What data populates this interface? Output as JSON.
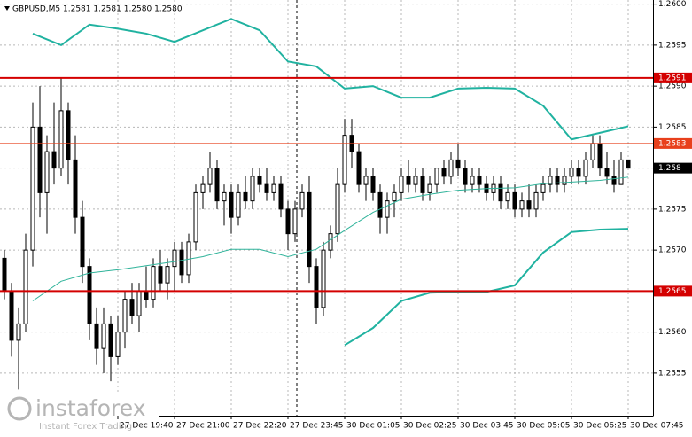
{
  "chart_data": {
    "type": "candlestick",
    "title": "GBPUSD,M5  1.2581 1.2581 1.2580 1.2580",
    "ylim": [
      1.25498,
      1.26005
    ],
    "yticks": [
      {
        "value": 1.26,
        "label": "1.2600"
      },
      1.2595,
      {
        "value": 1.259,
        "label": "1.2590"
      },
      1.2585,
      {
        "value": 1.258,
        "label": "1.2580"
      },
      1.2575,
      {
        "value": 1.257,
        "label": "1.2570"
      },
      1.2565,
      {
        "value": 1.256,
        "label": "1.2560"
      },
      1.2555
    ],
    "xlim": [
      -0.5,
      91
    ],
    "xticks": [
      {
        "value": 16,
        "label": "27 Dec 19:40"
      },
      {
        "value": 24,
        "label": "27 Dec 21:00"
      },
      {
        "value": 32,
        "label": "27 Dec 22:20"
      },
      {
        "value": 40,
        "label": "27 Dec 23:45"
      },
      {
        "value": 48,
        "label": "30 Dec 01:05"
      },
      {
        "value": 56,
        "label": "30 Dec 02:25"
      },
      {
        "value": 64,
        "label": "30 Dec 03:45"
      },
      {
        "value": 72,
        "label": "30 Dec 05:05"
      },
      {
        "value": 80,
        "label": "30 Dec 06:25"
      },
      {
        "value": 88,
        "label": "30 Dec 07:45"
      }
    ],
    "grid": true,
    "candles": [
      [
        1.2569,
        1.257,
        1.2564,
        1.2565
      ],
      [
        1.2565,
        1.2566,
        1.2557,
        1.2559
      ],
      [
        1.2559,
        1.2563,
        1.2553,
        1.2561
      ],
      [
        1.2561,
        1.2572,
        1.256,
        1.257
      ],
      [
        1.257,
        1.2588,
        1.2568,
        1.2585
      ],
      [
        1.2585,
        1.259,
        1.2574,
        1.2577
      ],
      [
        1.2577,
        1.2584,
        1.2572,
        1.2582
      ],
      [
        1.2582,
        1.2588,
        1.2578,
        1.258
      ],
      [
        1.258,
        1.2591,
        1.2579,
        1.2587
      ],
      [
        1.2587,
        1.2588,
        1.2578,
        1.2581
      ],
      [
        1.2581,
        1.2584,
        1.2572,
        1.2574
      ],
      [
        1.2574,
        1.2576,
        1.2566,
        1.2568
      ],
      [
        1.2568,
        1.2569,
        1.2559,
        1.2561
      ],
      [
        1.2561,
        1.2563,
        1.2556,
        1.2558
      ],
      [
        1.2558,
        1.2563,
        1.2555,
        1.2561
      ],
      [
        1.2561,
        1.2562,
        1.2554,
        1.2557
      ],
      [
        1.2557,
        1.2562,
        1.2556,
        1.256
      ],
      [
        1.256,
        1.2565,
        1.2558,
        1.2564
      ],
      [
        1.2564,
        1.2566,
        1.2561,
        1.2562
      ],
      [
        1.2562,
        1.2566,
        1.256,
        1.2565
      ],
      [
        1.2565,
        1.2568,
        1.2563,
        1.2564
      ],
      [
        1.2564,
        1.2569,
        1.2563,
        1.2568
      ],
      [
        1.2568,
        1.257,
        1.2565,
        1.2566
      ],
      [
        1.2566,
        1.2569,
        1.2564,
        1.2568
      ],
      [
        1.2568,
        1.2571,
        1.2565,
        1.257
      ],
      [
        1.257,
        1.2571,
        1.2566,
        1.2567
      ],
      [
        1.2567,
        1.2572,
        1.2566,
        1.2571
      ],
      [
        1.2571,
        1.2578,
        1.257,
        1.2577
      ],
      [
        1.2577,
        1.2579,
        1.2575,
        1.2578
      ],
      [
        1.2578,
        1.2582,
        1.2577,
        1.258
      ],
      [
        1.258,
        1.2581,
        1.2575,
        1.2576
      ],
      [
        1.2576,
        1.2578,
        1.2573,
        1.2577
      ],
      [
        1.2577,
        1.2578,
        1.2572,
        1.2574
      ],
      [
        1.2574,
        1.2578,
        1.2573,
        1.2577
      ],
      [
        1.2577,
        1.2579,
        1.2575,
        1.2576
      ],
      [
        1.2576,
        1.258,
        1.2575,
        1.2579
      ],
      [
        1.2579,
        1.258,
        1.2577,
        1.2578
      ],
      [
        1.2578,
        1.258,
        1.2576,
        1.2577
      ],
      [
        1.2577,
        1.2579,
        1.2576,
        1.2578
      ],
      [
        1.2578,
        1.2579,
        1.2574,
        1.2575
      ],
      [
        1.2575,
        1.2576,
        1.257,
        1.2572
      ],
      [
        1.2572,
        1.2576,
        1.2571,
        1.2575
      ],
      [
        1.2575,
        1.2578,
        1.2574,
        1.2577
      ],
      [
        1.2577,
        1.2579,
        1.2566,
        1.2568
      ],
      [
        1.2568,
        1.2569,
        1.2561,
        1.2563
      ],
      [
        1.2563,
        1.2571,
        1.2562,
        1.257
      ],
      [
        1.257,
        1.2573,
        1.2569,
        1.2572
      ],
      [
        1.2572,
        1.258,
        1.2571,
        1.2578
      ],
      [
        1.2578,
        1.2586,
        1.2577,
        1.2584
      ],
      [
        1.2584,
        1.2586,
        1.258,
        1.2582
      ],
      [
        1.2582,
        1.2583,
        1.2577,
        1.2578
      ],
      [
        1.2578,
        1.258,
        1.2576,
        1.2579
      ],
      [
        1.2579,
        1.258,
        1.2576,
        1.2577
      ],
      [
        1.2577,
        1.2578,
        1.2572,
        1.2574
      ],
      [
        1.2574,
        1.2577,
        1.2572,
        1.2576
      ],
      [
        1.2576,
        1.2578,
        1.2574,
        1.2577
      ],
      [
        1.2577,
        1.258,
        1.2576,
        1.2579
      ],
      [
        1.2579,
        1.2581,
        1.2577,
        1.2578
      ],
      [
        1.2578,
        1.258,
        1.2577,
        1.2579
      ],
      [
        1.2579,
        1.258,
        1.2576,
        1.2577
      ],
      [
        1.2577,
        1.2579,
        1.2576,
        1.2578
      ],
      [
        1.2578,
        1.258,
        1.2577,
        1.258
      ],
      [
        1.258,
        1.2581,
        1.2578,
        1.2579
      ],
      [
        1.2579,
        1.2582,
        1.2578,
        1.2581
      ],
      [
        1.2581,
        1.2583,
        1.2579,
        1.258
      ],
      [
        1.258,
        1.2581,
        1.2577,
        1.2578
      ],
      [
        1.2578,
        1.258,
        1.2577,
        1.2579
      ],
      [
        1.2579,
        1.258,
        1.2577,
        1.2578
      ],
      [
        1.2578,
        1.2579,
        1.2576,
        1.2577
      ],
      [
        1.2577,
        1.2579,
        1.2576,
        1.2578
      ],
      [
        1.2578,
        1.2579,
        1.2575,
        1.2576
      ],
      [
        1.2576,
        1.2578,
        1.2575,
        1.2577
      ],
      [
        1.2577,
        1.2578,
        1.2574,
        1.2575
      ],
      [
        1.2575,
        1.2577,
        1.2574,
        1.2576
      ],
      [
        1.2576,
        1.2578,
        1.2574,
        1.2575
      ],
      [
        1.2575,
        1.2578,
        1.2574,
        1.2577
      ],
      [
        1.2577,
        1.2579,
        1.2576,
        1.2578
      ],
      [
        1.2578,
        1.258,
        1.2577,
        1.2579
      ],
      [
        1.2579,
        1.258,
        1.2577,
        1.2578
      ],
      [
        1.2578,
        1.258,
        1.2577,
        1.2579
      ],
      [
        1.2579,
        1.2581,
        1.2578,
        1.258
      ],
      [
        1.258,
        1.2581,
        1.2578,
        1.2579
      ],
      [
        1.2579,
        1.2582,
        1.2578,
        1.2581
      ],
      [
        1.2581,
        1.2584,
        1.258,
        1.2583
      ],
      [
        1.2583,
        1.2584,
        1.2579,
        1.258
      ],
      [
        1.258,
        1.2582,
        1.2578,
        1.2579
      ],
      [
        1.2579,
        1.2581,
        1.2577,
        1.2578
      ],
      [
        1.2578,
        1.2582,
        1.2578,
        1.2581
      ],
      [
        1.2581,
        1.2581,
        1.258,
        1.258
      ]
    ],
    "x": [
      0,
      4,
      8,
      12,
      16,
      20,
      24,
      28,
      32,
      36,
      40,
      44,
      48,
      52,
      56,
      60,
      64,
      68,
      72,
      76,
      80,
      84,
      88
    ],
    "series": [
      {
        "color": "#20b2a0",
        "values": [
          null,
          1.25964,
          1.2595,
          1.25975,
          1.2597,
          1.25964,
          1.25954,
          1.25968,
          1.25982,
          1.25968,
          1.2593,
          1.25924,
          1.25897,
          1.259,
          1.25886,
          1.25886,
          1.25897,
          1.25898,
          1.25897,
          1.25876,
          1.25835,
          1.25843,
          1.25851
        ]
      },
      {
        "color": "#2fb39a",
        "values": [
          null,
          1.25638,
          1.25662,
          1.25672,
          1.25676,
          1.25681,
          1.25686,
          1.25692,
          1.25701,
          1.25701,
          1.25692,
          1.25701,
          1.25724,
          1.25746,
          1.25762,
          1.25768,
          1.25773,
          1.25775,
          1.25776,
          1.25781,
          1.25783,
          1.25785,
          1.25789
        ]
      },
      {
        "color": "#20b2a0",
        "values": [
          null,
          null,
          null,
          null,
          null,
          null,
          null,
          null,
          null,
          null,
          null,
          null,
          1.25584,
          1.25605,
          1.25638,
          1.25648,
          1.25649,
          1.25649,
          1.25657,
          1.25697,
          1.25722,
          1.25725,
          1.25726
        ]
      }
    ],
    "levels": [
      {
        "value": 1.2591,
        "color": "#d40000"
      },
      {
        "value": 1.2583,
        "color": "#e8401c"
      },
      {
        "value": 1.2565,
        "color": "#d40000"
      },
      {
        "value": 1.258,
        "color": "#000000"
      }
    ],
    "logo": "instaforex",
    "logo_subtitle": "Instant Forex Trading"
  }
}
